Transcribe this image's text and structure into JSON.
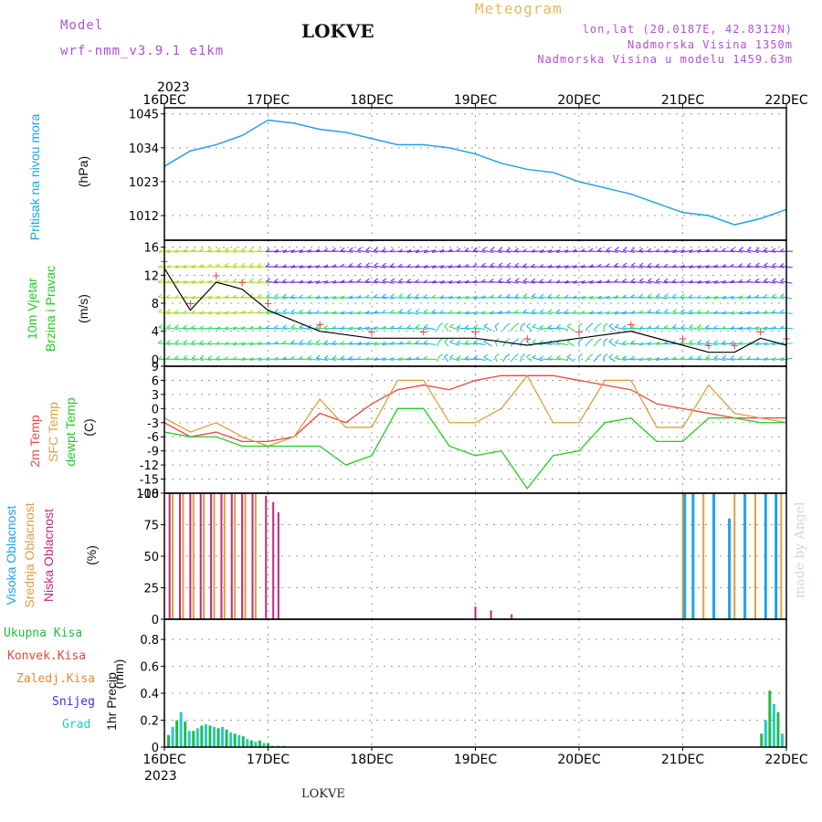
{
  "header": {
    "model_label": "Model",
    "model_name": "wrf-nmm_v3.9.1 e1km",
    "station": "LOKVE",
    "meteogram": "Meteogram",
    "lonlat": "lon,lat (20.0187E, 42.8312N)",
    "altitude": "Nadmorska Visina 1350m",
    "model_altitude": "Nadmorska Visina u modelu 1459.63m",
    "year": "2023",
    "footer": "LOKVE",
    "watermark": "made by Angel"
  },
  "colors": {
    "pressure": "#1fa3e6",
    "temp2m": "#e8473f",
    "sfc": "#dca042",
    "dewpt": "#22cc22",
    "high_cloud": "#1fa3e6",
    "mid_cloud": "#dca042",
    "low_cloud": "#c8267a",
    "precip_total": "#22bb44",
    "precip_conv": "#e8473f",
    "precip_frz": "#ee8833",
    "snow": "#3333dd",
    "hail": "#22cccc",
    "panel_label_pressure": "#1fa3e6",
    "panel_label_wind": "#22cc22",
    "wind_arrows": [
      "#7a2ee0",
      "#22aaff",
      "#22cccc",
      "#33dd66",
      "#aadd22"
    ]
  },
  "chart_data": [
    {
      "type": "line",
      "panel": "pressure",
      "ylabel": "Pritisak na nivou mora",
      "unit": "(hPa)",
      "ylim": [
        1004,
        1047
      ],
      "yticks": [
        1045,
        1034,
        1023,
        1012
      ],
      "x_days": [
        0,
        0.25,
        0.5,
        0.75,
        1.0,
        1.25,
        1.5,
        1.75,
        2.0,
        2.25,
        2.5,
        2.75,
        3.0,
        3.25,
        3.5,
        3.75,
        4.0,
        4.25,
        4.5,
        4.75,
        5.0,
        5.25,
        5.5,
        5.75,
        6.0
      ],
      "values": [
        1028,
        1033,
        1035,
        1038,
        1043,
        1042,
        1040,
        1039,
        1037,
        1035,
        1035,
        1034,
        1032,
        1029,
        1027,
        1026,
        1023,
        1021,
        1019,
        1016,
        1013,
        1012,
        1009,
        1011,
        1014
      ],
      "grid": true
    },
    {
      "type": "line",
      "panel": "wind",
      "ylabel": "10m Vjetar Brzina i Pravac",
      "unit": "(m/s)",
      "ylim": [
        -1,
        17
      ],
      "yticks": [
        16,
        12,
        8,
        4,
        0
      ],
      "series": [
        {
          "name": "speed",
          "x": [
            0,
            0.25,
            0.5,
            0.75,
            1.0,
            1.5,
            2.0,
            2.5,
            3.0,
            3.5,
            4.0,
            4.5,
            5.0,
            5.25,
            5.5,
            5.75,
            6.0
          ],
          "values": [
            13,
            7,
            11,
            10,
            7,
            4,
            3,
            3,
            3,
            2,
            3,
            4,
            2,
            1,
            1,
            3,
            2
          ]
        }
      ]
    },
    {
      "type": "line",
      "panel": "temperature",
      "ylabel": "2m Temp",
      "ylabel2": "SFC Temp",
      "ylabel3": "dewpt Temp",
      "unit": "(C)",
      "ylim": [
        -18,
        9
      ],
      "yticks": [
        9,
        6,
        3,
        0,
        -3,
        -6,
        -9,
        -12,
        -15,
        -18
      ],
      "x_days": [
        0,
        0.25,
        0.5,
        0.75,
        1.0,
        1.25,
        1.5,
        1.75,
        2.0,
        2.25,
        2.5,
        2.75,
        3.0,
        3.25,
        3.5,
        3.75,
        4.0,
        4.25,
        4.5,
        4.75,
        5.0,
        5.25,
        5.5,
        5.75,
        6.0
      ],
      "series": [
        {
          "name": "2m Temp",
          "values": [
            -3,
            -6,
            -5,
            -7,
            -7,
            -6,
            -1,
            -3,
            1,
            4,
            5,
            4,
            6,
            7,
            7,
            7,
            6,
            5,
            4,
            1,
            0,
            -1,
            -2,
            -2,
            -2
          ]
        },
        {
          "name": "SFC Temp",
          "values": [
            -2,
            -5,
            -3,
            -6,
            -8,
            -6,
            2,
            -4,
            -4,
            6,
            6,
            -3,
            -3,
            0,
            7,
            -3,
            -3,
            6,
            6,
            -4,
            -4,
            5,
            -1,
            -2,
            -3
          ]
        },
        {
          "name": "dewpt Temp",
          "values": [
            -5,
            -6,
            -6,
            -8,
            -8,
            -8,
            -8,
            -12,
            -10,
            0,
            0,
            -8,
            -10,
            -9,
            -17,
            -10,
            -9,
            -3,
            -2,
            -7,
            -7,
            -2,
            -2,
            -3,
            -3
          ]
        }
      ],
      "grid": true
    },
    {
      "type": "bar",
      "panel": "clouds",
      "ylabel": "Visoka Oblacnost",
      "ylabel2": "Srednja Oblacnost",
      "ylabel3": "Niska Oblacnost",
      "unit": "(%)",
      "ylim": [
        0,
        100
      ],
      "yticks": [
        100,
        75,
        50,
        25,
        0
      ],
      "series": [
        {
          "name": "low",
          "bars": [
            [
              0.05,
              100
            ],
            [
              0.15,
              100
            ],
            [
              0.25,
              100
            ],
            [
              0.35,
              100
            ],
            [
              0.45,
              100
            ],
            [
              0.55,
              100
            ],
            [
              0.65,
              100
            ],
            [
              0.75,
              100
            ],
            [
              0.85,
              100
            ],
            [
              0.98,
              98
            ],
            [
              1.05,
              93
            ],
            [
              1.1,
              85
            ],
            [
              3.0,
              10
            ],
            [
              3.15,
              7
            ],
            [
              3.35,
              4
            ]
          ]
        },
        {
          "name": "mid",
          "bars": [
            [
              0.08,
              100
            ],
            [
              0.18,
              100
            ],
            [
              0.28,
              100
            ],
            [
              0.38,
              100
            ],
            [
              0.48,
              100
            ],
            [
              0.58,
              100
            ],
            [
              0.68,
              100
            ],
            [
              0.78,
              100
            ],
            [
              0.88,
              100
            ],
            [
              5.0,
              100
            ],
            [
              5.2,
              100
            ],
            [
              5.5,
              100
            ],
            [
              5.7,
              100
            ],
            [
              5.95,
              100
            ]
          ]
        },
        {
          "name": "high",
          "bars": [
            [
              5.02,
              100
            ],
            [
              5.1,
              100
            ],
            [
              5.3,
              100
            ],
            [
              5.45,
              80
            ],
            [
              5.6,
              100
            ],
            [
              5.8,
              100
            ],
            [
              5.9,
              100
            ]
          ]
        }
      ]
    },
    {
      "type": "bar",
      "panel": "precip",
      "ylabel": "1hr Precip",
      "unit": "(mm)",
      "ylim": [
        0,
        0.95
      ],
      "yticks": [
        0.8,
        0.6,
        0.4,
        0.2,
        0
      ],
      "legend": [
        "Ukupna Kisa",
        "Konvek.Kisa",
        "Zaledj.Kisa",
        "Snijeg",
        "Grad"
      ],
      "x_days": [
        0.04,
        0.08,
        0.12,
        0.16,
        0.2,
        0.24,
        0.28,
        0.32,
        0.36,
        0.4,
        0.44,
        0.48,
        0.52,
        0.56,
        0.6,
        0.64,
        0.68,
        0.72,
        0.76,
        0.8,
        0.84,
        0.88,
        0.92,
        0.96,
        1.0,
        1.04,
        1.1,
        1.15,
        5.76,
        5.8,
        5.84,
        5.88,
        5.92,
        5.96
      ],
      "values": [
        0.09,
        0.15,
        0.2,
        0.26,
        0.19,
        0.12,
        0.12,
        0.14,
        0.16,
        0.17,
        0.16,
        0.15,
        0.14,
        0.15,
        0.13,
        0.11,
        0.1,
        0.09,
        0.08,
        0.06,
        0.05,
        0.04,
        0.05,
        0.03,
        0.03,
        0.01,
        0.01,
        0.01,
        0.1,
        0.2,
        0.42,
        0.32,
        0.26,
        0.1
      ]
    }
  ],
  "x_axis": {
    "ticks": [
      "16DEC",
      "17DEC",
      "18DEC",
      "19DEC",
      "20DEC",
      "21DEC",
      "22DEC"
    ],
    "year_label": "2023"
  },
  "labels": {
    "pressure": "Pritisak na nivou mora",
    "pressure_unit": "(hPa)",
    "wind1": "10m Vjetar",
    "wind2": "Brzina i Pravac",
    "wind_unit": "(m/s)",
    "t1": "2m Temp",
    "t2": "SFC Temp",
    "t3": "dewpt Temp",
    "t_unit": "(C)",
    "c1": "Visoka Oblacnost",
    "c2": "Srednja Oblacnost",
    "c3": "Niska Oblacnost",
    "c_unit": "(%)",
    "p_label": "1hr Precip",
    "p_unit": "(mm)"
  }
}
